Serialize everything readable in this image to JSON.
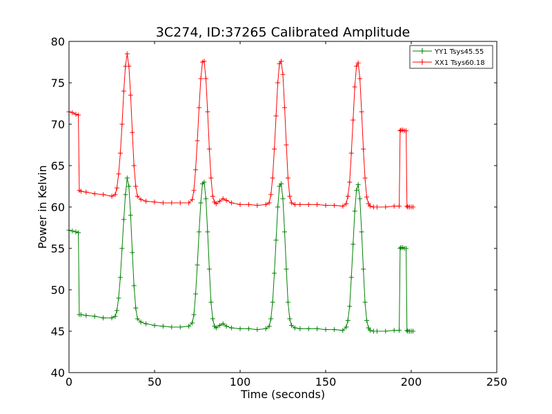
{
  "chart_data": {
    "type": "line",
    "title": "3C274, ID:37265 Calibrated Amplitude",
    "xlabel": "Time (seconds)",
    "ylabel": "Power in Kelvin",
    "xlim": [
      0,
      250
    ],
    "ylim": [
      40,
      80
    ],
    "xticks": [
      0,
      50,
      100,
      150,
      200,
      250
    ],
    "yticks": [
      40,
      45,
      50,
      55,
      60,
      65,
      70,
      75,
      80
    ],
    "grid": false,
    "legend_position": "top-right",
    "series": [
      {
        "name": "YY1 Tsys45.55",
        "color": "#008000",
        "marker": "+",
        "x": [
          0,
          2,
          4,
          5.5,
          6,
          7,
          10,
          15,
          20,
          25,
          27,
          28,
          29,
          30,
          31,
          32,
          33,
          34,
          35,
          36,
          37,
          38,
          39,
          40,
          42,
          45,
          50,
          55,
          60,
          65,
          70,
          72,
          73,
          74,
          75,
          76,
          77,
          78,
          79,
          80,
          81,
          82,
          83,
          84,
          85,
          86,
          88,
          90,
          92,
          95,
          100,
          105,
          110,
          115,
          117,
          118,
          119,
          120,
          121,
          122,
          123,
          124,
          125,
          126,
          127,
          128,
          129,
          130,
          132,
          135,
          140,
          145,
          150,
          155,
          160,
          162,
          163,
          164,
          165,
          166,
          167,
          168,
          169,
          170,
          171,
          172,
          173,
          174,
          175,
          176,
          178,
          180,
          185,
          190,
          193,
          193.5,
          194,
          195,
          196,
          197,
          197.5,
          198,
          199,
          200,
          201
        ],
        "values": [
          57.2,
          57.1,
          57.0,
          56.9,
          47.0,
          47.0,
          46.9,
          46.8,
          46.6,
          46.6,
          46.8,
          47.5,
          49.0,
          51.5,
          55.0,
          58.5,
          61.5,
          63.5,
          62.5,
          59.0,
          54.5,
          50.5,
          47.8,
          46.5,
          46.1,
          45.9,
          45.7,
          45.6,
          45.5,
          45.5,
          45.6,
          46.0,
          47.0,
          49.5,
          53.0,
          57.0,
          60.5,
          62.8,
          63.0,
          61.0,
          57.0,
          52.5,
          48.5,
          46.5,
          45.6,
          45.4,
          45.7,
          45.9,
          45.6,
          45.4,
          45.3,
          45.3,
          45.2,
          45.3,
          45.6,
          46.5,
          48.5,
          52.0,
          56.0,
          60.0,
          62.5,
          62.8,
          61.0,
          57.0,
          52.5,
          48.5,
          46.5,
          45.7,
          45.4,
          45.3,
          45.3,
          45.3,
          45.2,
          45.2,
          45.1,
          45.5,
          46.3,
          48.0,
          51.5,
          55.5,
          59.5,
          62.0,
          62.7,
          61.0,
          57.0,
          52.5,
          48.5,
          46.3,
          45.4,
          45.1,
          45.0,
          45.0,
          45.0,
          45.1,
          45.1,
          55.0,
          55.1,
          55.1,
          55.0,
          55.0,
          45.1,
          45.0,
          45.0,
          45.0,
          45.0
        ]
      },
      {
        "name": "XX1 Tsys60.18",
        "color": "#ff0000",
        "marker": "+",
        "x": [
          0,
          2,
          4,
          5.5,
          6,
          7,
          10,
          15,
          20,
          25,
          27,
          28,
          29,
          30,
          31,
          32,
          33,
          34,
          35,
          36,
          37,
          38,
          39,
          40,
          42,
          45,
          50,
          55,
          60,
          65,
          70,
          72,
          73,
          74,
          75,
          76,
          77,
          78,
          79,
          80,
          81,
          82,
          83,
          84,
          85,
          86,
          88,
          90,
          92,
          95,
          100,
          105,
          110,
          115,
          117,
          118,
          119,
          120,
          121,
          122,
          123,
          124,
          125,
          126,
          127,
          128,
          129,
          130,
          132,
          135,
          140,
          145,
          150,
          155,
          160,
          162,
          163,
          164,
          165,
          166,
          167,
          168,
          169,
          170,
          171,
          172,
          173,
          174,
          175,
          176,
          178,
          180,
          185,
          190,
          193,
          193.5,
          194,
          195,
          196,
          197,
          197.5,
          198,
          199,
          200,
          201
        ],
        "values": [
          71.5,
          71.4,
          71.2,
          71.1,
          62.0,
          61.9,
          61.8,
          61.6,
          61.5,
          61.3,
          61.5,
          62.3,
          64.0,
          66.5,
          70.0,
          74.0,
          77.0,
          78.5,
          77.0,
          73.5,
          69.0,
          65.0,
          62.5,
          61.3,
          60.9,
          60.7,
          60.6,
          60.5,
          60.5,
          60.5,
          60.5,
          60.9,
          62.0,
          64.5,
          68.0,
          72.0,
          75.5,
          77.5,
          77.6,
          75.5,
          71.5,
          67.0,
          63.5,
          61.3,
          60.6,
          60.4,
          60.7,
          61.0,
          60.8,
          60.5,
          60.3,
          60.3,
          60.2,
          60.3,
          60.5,
          61.5,
          63.5,
          67.0,
          71.0,
          75.0,
          77.3,
          77.6,
          76.0,
          72.0,
          67.5,
          63.5,
          61.3,
          60.5,
          60.3,
          60.3,
          60.3,
          60.3,
          60.2,
          60.2,
          60.1,
          60.4,
          61.3,
          63.0,
          66.5,
          70.5,
          74.5,
          77.0,
          77.4,
          75.5,
          71.5,
          67.0,
          63.5,
          61.2,
          60.4,
          60.1,
          60.0,
          60.0,
          60.0,
          60.1,
          60.1,
          69.2,
          69.3,
          69.3,
          69.2,
          69.2,
          60.1,
          60.0,
          60.0,
          60.0,
          60.0
        ]
      }
    ]
  }
}
